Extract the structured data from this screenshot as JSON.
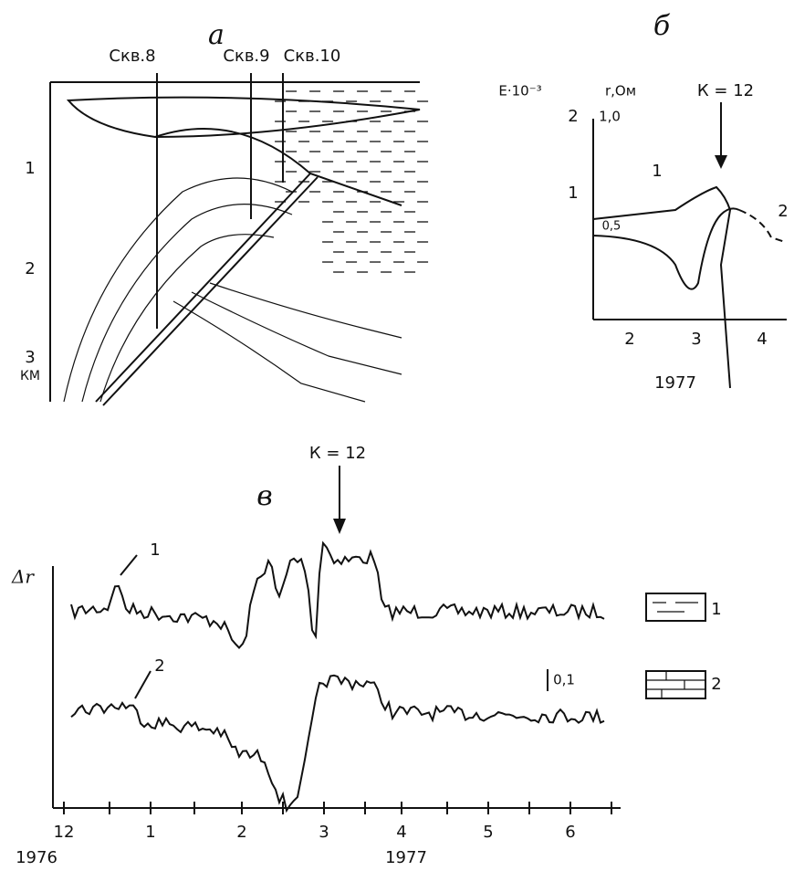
{
  "panel_a": {
    "label": "а",
    "wells": [
      "Скв.8",
      "Скв.9",
      "Скв.10"
    ],
    "depth_ticks": [
      "1",
      "2",
      "3"
    ],
    "depth_unit": "КМ"
  },
  "panel_b": {
    "label": "б",
    "e_axis": "E·10⁻³",
    "r_axis": "r,Ом",
    "e_ticks": [
      "2",
      "1"
    ],
    "r_ticks": [
      "1,0",
      "0,5"
    ],
    "event": "К = 12",
    "x_ticks": [
      "2",
      "3",
      "4"
    ],
    "year": "1977",
    "curve_labels": [
      "1",
      "2"
    ]
  },
  "panel_c": {
    "label": "в",
    "y_label": "Δr",
    "event": "К = 12",
    "curve_labels": [
      "1",
      "2"
    ],
    "scale_bar": "0,1",
    "x_ticks": [
      "12",
      "1",
      "2",
      "3",
      "4",
      "5",
      "6"
    ],
    "years": [
      "1976",
      "1977"
    ]
  },
  "legend": [
    "1",
    "2"
  ]
}
